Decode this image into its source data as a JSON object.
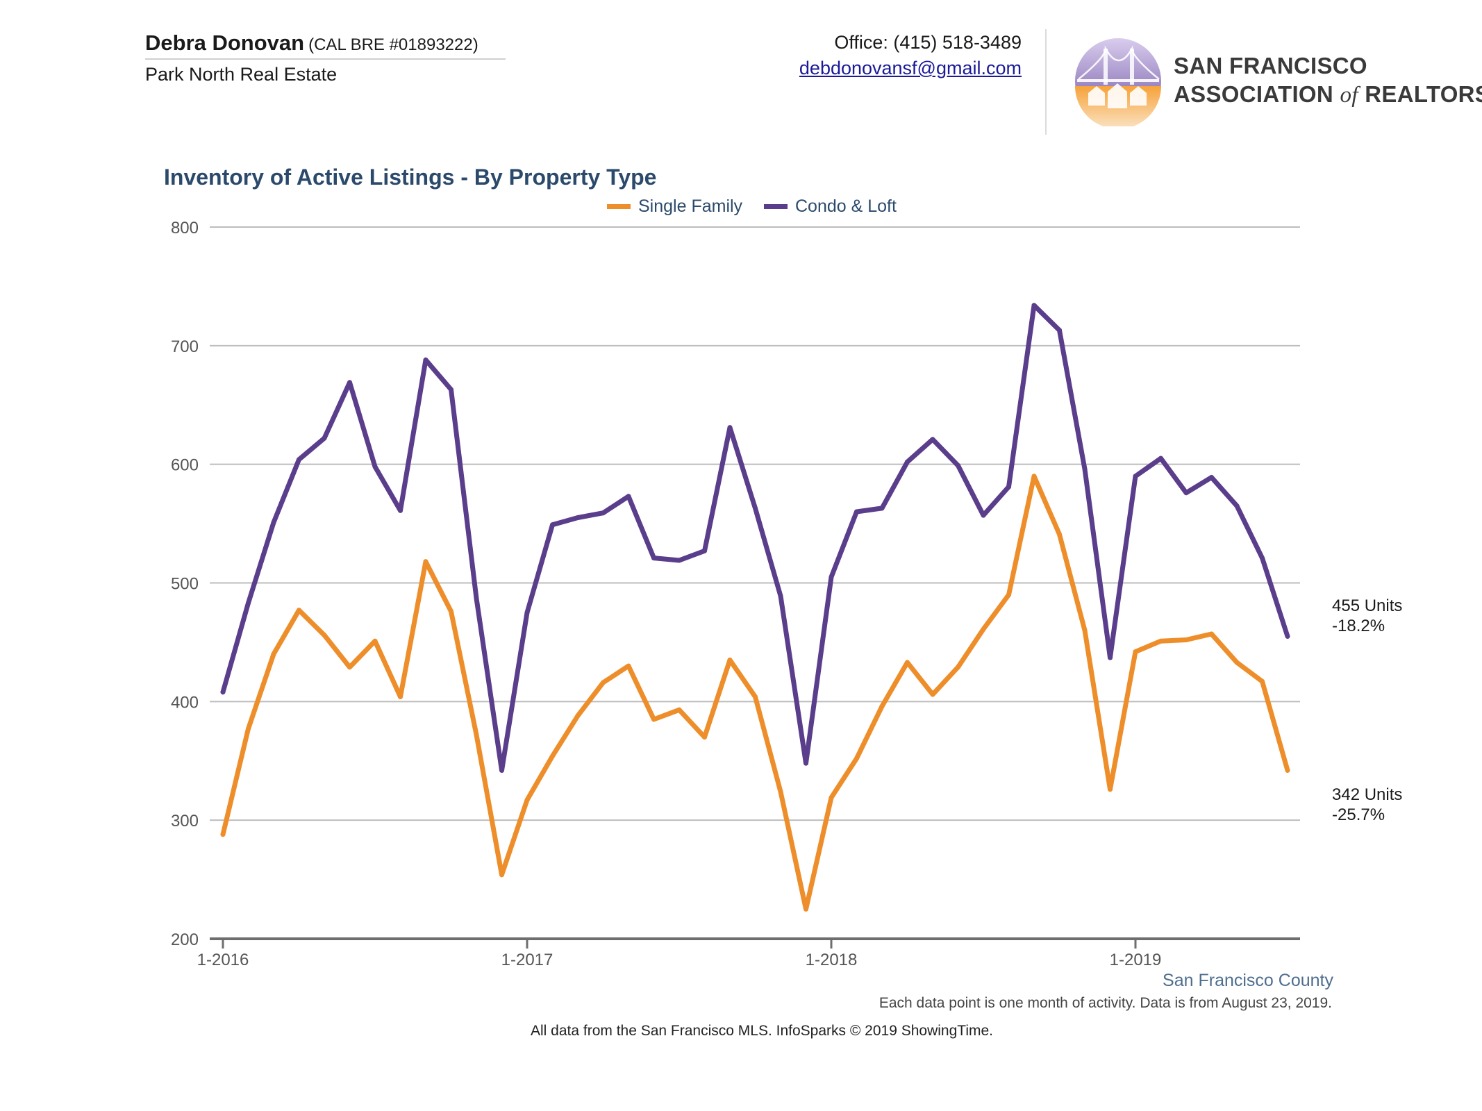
{
  "header": {
    "agent_name": "Debra Donovan",
    "agent_license": "(CAL BRE #01893222)",
    "agent_company": "Park North Real Estate",
    "office_phone": "Office: (415) 518-3489",
    "email": "debdonovansf@gmail.com",
    "logo": {
      "line1": "SAN FRANCISCO",
      "line2_a": "ASSOCIATION",
      "line2_of": "of",
      "line2_b": "REALTORS",
      "reg_mark": "®",
      "emblem_icon": "golden-gate-bridge-houses-emblem"
    }
  },
  "footer": {
    "region": "San Francisco County",
    "note": "Each data point is one month of activity. Data is from August 23, 2019.",
    "source": "All data from the San Francisco MLS. InfoSparks © 2019 ShowingTime."
  },
  "colors": {
    "single_family": "#ee8e2a",
    "condo_loft": "#5a3e8c",
    "title": "#2b4a6b",
    "grid": "#bdbdbd",
    "axis": "#6e6e6e"
  },
  "chart_data": {
    "type": "line",
    "title": "Inventory of Active Listings - By Property Type",
    "xlabel": "",
    "ylabel": "",
    "ylim": [
      200,
      800
    ],
    "yticks": [
      200,
      300,
      400,
      500,
      600,
      700,
      800
    ],
    "x_tick_labels": [
      "1-2016",
      "1-2017",
      "1-2018",
      "1-2019"
    ],
    "x_start": "2016-01",
    "x_end": "2019-07",
    "grid": true,
    "legend_position": "top-center",
    "series": [
      {
        "name": "Single Family",
        "color": "#ee8e2a",
        "end_label_units": "342 Units",
        "end_label_change": "-25.7%",
        "values": [
          288,
          377,
          440,
          477,
          456,
          429,
          451,
          404,
          518,
          476,
          372,
          254,
          317,
          354,
          388,
          416,
          430,
          385,
          393,
          370,
          435,
          404,
          324,
          225,
          319,
          352,
          396,
          433,
          406,
          429,
          461,
          490,
          590,
          541,
          460,
          326,
          442,
          451,
          452,
          457,
          433,
          417,
          342
        ]
      },
      {
        "name": "Condo & Loft",
        "color": "#5a3e8c",
        "end_label_units": "455 Units",
        "end_label_change": "-18.2%",
        "values": [
          408,
          483,
          551,
          604,
          622,
          669,
          598,
          561,
          688,
          663,
          487,
          342,
          475,
          549,
          555,
          559,
          573,
          521,
          519,
          527,
          631,
          563,
          489,
          348,
          505,
          560,
          563,
          602,
          621,
          599,
          557,
          581,
          734,
          713,
          596,
          437,
          590,
          605,
          576,
          589,
          565,
          521,
          455
        ]
      }
    ]
  }
}
